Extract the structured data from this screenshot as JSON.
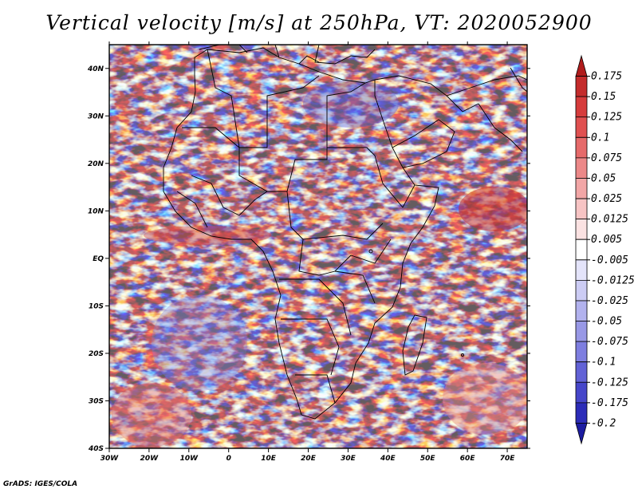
{
  "title": "Vertical velocity [m/s] at 250hPa, VT: 2020052900",
  "credit": "GrADS: IGES/COLA",
  "map": {
    "lon_labels": [
      "30W",
      "20W",
      "10W",
      "0",
      "10E",
      "20E",
      "30E",
      "40E",
      "50E",
      "60E",
      "70E"
    ],
    "lat_labels": [
      "40N",
      "30N",
      "20N",
      "10N",
      "EQ",
      "10S",
      "20S",
      "30S",
      "40S"
    ],
    "lon_range": [
      -30,
      75
    ],
    "lat_range": [
      -40,
      45
    ]
  },
  "colorbar": {
    "levels": [
      "0.175",
      "0.15",
      "0.125",
      "0.1",
      "0.075",
      "0.05",
      "0.025",
      "0.0125",
      "0.005",
      "-0.005",
      "-0.0125",
      "-0.025",
      "-0.05",
      "-0.075",
      "-0.1",
      "-0.125",
      "-0.175",
      "-0.2"
    ],
    "colors": [
      "#b01c1c",
      "#c42c2c",
      "#d63c3c",
      "#e05050",
      "#e66a6a",
      "#ec8888",
      "#f2a6a6",
      "#f7c4c4",
      "#fbe2e2",
      "#ffffff",
      "#e4e4fa",
      "#ccccf4",
      "#b2b2ee",
      "#9898e6",
      "#7e7ee0",
      "#6262d6",
      "#4646ca",
      "#2c2cb8",
      "#1c1ca0"
    ]
  }
}
